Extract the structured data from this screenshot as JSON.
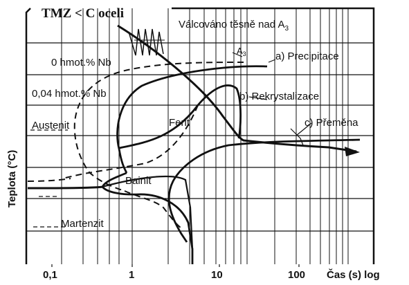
{
  "diagram": {
    "title": "TMZ  < C oceli",
    "subtitle": "Válcováno těsně nad A",
    "subtitle_subscript": "3",
    "a3_label": "A",
    "a3_subscript": "3",
    "y_axis_label": "Teplota   (°C)",
    "x_axis_label": "Čas  (s)  log",
    "x_ticks": [
      "0,1",
      "1",
      "10",
      "100"
    ],
    "curve_labels": {
      "nb_0": "0  hmot.% Nb",
      "nb_004": "0,04 hmot.% Nb",
      "austenit": "Austenit",
      "ferit": "Ferit",
      "bainit": "Bainit",
      "martenzit": "Martenzit",
      "precipitace": "a)  Precipitace",
      "rekrystalizace": "b)  Rekrystalizace",
      "premena": "c)  Přeměna"
    },
    "line_styles": {
      "solid": "0,04 hmot.% Nb",
      "dashed": "0  hmot.% Nb"
    },
    "colors": {
      "ink": "#111111",
      "background": "#ffffff"
    }
  }
}
